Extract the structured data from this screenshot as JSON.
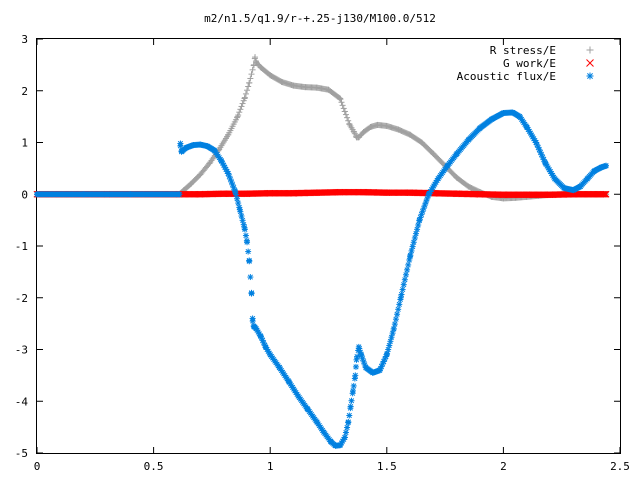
{
  "chart_data": {
    "type": "scatter",
    "title": "m2/n1.5/q1.9/r-+.25-j130/M100.0/512",
    "xlabel": "",
    "ylabel": "",
    "xlim": [
      0,
      2.5
    ],
    "ylim": [
      -5,
      3
    ],
    "x_ticks": [
      "0",
      "0.5",
      "1",
      "1.5",
      "2",
      "2.5"
    ],
    "y_ticks": [
      "3",
      "2",
      "1",
      "0",
      "-1",
      "-2",
      "-3",
      "-4",
      "-5"
    ],
    "x_tick_values": [
      0,
      0.5,
      1,
      1.5,
      2,
      2.5
    ],
    "y_tick_values": [
      3,
      2,
      1,
      0,
      -1,
      -2,
      -3,
      -4,
      -5
    ],
    "grid": false,
    "legend_position": "top-right",
    "series": [
      {
        "name": "R stress/E",
        "marker": "plus",
        "color": "#a0a0a0",
        "x": [
          0.0,
          0.2,
          0.4,
          0.61,
          0.63,
          0.66,
          0.7,
          0.74,
          0.78,
          0.82,
          0.86,
          0.89,
          0.91,
          0.93,
          0.935,
          0.94,
          0.96,
          1.0,
          1.05,
          1.1,
          1.15,
          1.2,
          1.25,
          1.3,
          1.32,
          1.34,
          1.36,
          1.37,
          1.38,
          1.4,
          1.43,
          1.46,
          1.5,
          1.55,
          1.6,
          1.65,
          1.7,
          1.75,
          1.8,
          1.85,
          1.9,
          1.95,
          2.0,
          2.05,
          2.1,
          2.15,
          2.2,
          2.25,
          2.3,
          2.35,
          2.4,
          2.44
        ],
        "y": [
          0.0,
          0.0,
          0.0,
          0.0,
          0.08,
          0.2,
          0.38,
          0.6,
          0.86,
          1.15,
          1.5,
          1.85,
          2.15,
          2.5,
          2.65,
          2.55,
          2.45,
          2.3,
          2.17,
          2.1,
          2.07,
          2.06,
          2.02,
          1.85,
          1.6,
          1.35,
          1.2,
          1.1,
          1.1,
          1.2,
          1.3,
          1.34,
          1.32,
          1.25,
          1.15,
          1.0,
          0.78,
          0.55,
          0.32,
          0.15,
          0.04,
          -0.05,
          -0.08,
          -0.07,
          -0.05,
          -0.03,
          -0.01,
          0.0,
          0.0,
          0.0,
          0.0,
          0.0
        ]
      },
      {
        "name": "G work/E",
        "marker": "cross",
        "color": "#ff0000",
        "x": [
          0.0,
          0.3,
          0.61,
          0.7,
          0.8,
          0.9,
          1.0,
          1.1,
          1.2,
          1.3,
          1.4,
          1.5,
          1.6,
          1.7,
          1.8,
          1.9,
          2.0,
          2.1,
          2.2,
          2.3,
          2.44
        ],
        "y": [
          0.0,
          0.0,
          0.0,
          0.0,
          0.01,
          0.01,
          0.02,
          0.02,
          0.03,
          0.04,
          0.04,
          0.03,
          0.03,
          0.02,
          0.01,
          0.0,
          -0.01,
          -0.01,
          -0.01,
          0.0,
          0.0
        ]
      },
      {
        "name": "Acoustic flux/E",
        "marker": "asterisk",
        "color": "#0080e0",
        "x": [
          0.0,
          0.2,
          0.4,
          0.61,
          0.615,
          0.62,
          0.64,
          0.67,
          0.7,
          0.73,
          0.76,
          0.79,
          0.82,
          0.85,
          0.87,
          0.89,
          0.9,
          0.91,
          0.92,
          0.925,
          0.93,
          0.935,
          0.94,
          0.96,
          0.98,
          1.0,
          1.04,
          1.08,
          1.12,
          1.16,
          1.2,
          1.23,
          1.26,
          1.28,
          1.3,
          1.32,
          1.335,
          1.345,
          1.355,
          1.365,
          1.37,
          1.38,
          1.39,
          1.41,
          1.44,
          1.47,
          1.5,
          1.53,
          1.56,
          1.6,
          1.64,
          1.68,
          1.72,
          1.76,
          1.8,
          1.85,
          1.9,
          1.95,
          2.0,
          2.04,
          2.07,
          2.1,
          2.14,
          2.18,
          2.22,
          2.26,
          2.3,
          2.33,
          2.36,
          2.39,
          2.42,
          2.44
        ],
        "y": [
          0.0,
          0.0,
          0.0,
          0.0,
          0.98,
          0.82,
          0.9,
          0.95,
          0.96,
          0.93,
          0.85,
          0.65,
          0.4,
          0.05,
          -0.3,
          -0.65,
          -0.9,
          -1.28,
          -1.92,
          -2.45,
          -2.56,
          -2.57,
          -2.6,
          -2.75,
          -2.95,
          -3.1,
          -3.35,
          -3.62,
          -3.9,
          -4.15,
          -4.4,
          -4.6,
          -4.78,
          -4.86,
          -4.85,
          -4.7,
          -4.4,
          -4.1,
          -3.8,
          -3.5,
          -3.2,
          -2.95,
          -3.1,
          -3.35,
          -3.45,
          -3.4,
          -3.1,
          -2.6,
          -2.0,
          -1.2,
          -0.5,
          0.0,
          0.3,
          0.55,
          0.78,
          1.05,
          1.28,
          1.45,
          1.57,
          1.58,
          1.5,
          1.3,
          1.0,
          0.6,
          0.3,
          0.12,
          0.08,
          0.15,
          0.3,
          0.45,
          0.52,
          0.55
        ]
      }
    ]
  }
}
